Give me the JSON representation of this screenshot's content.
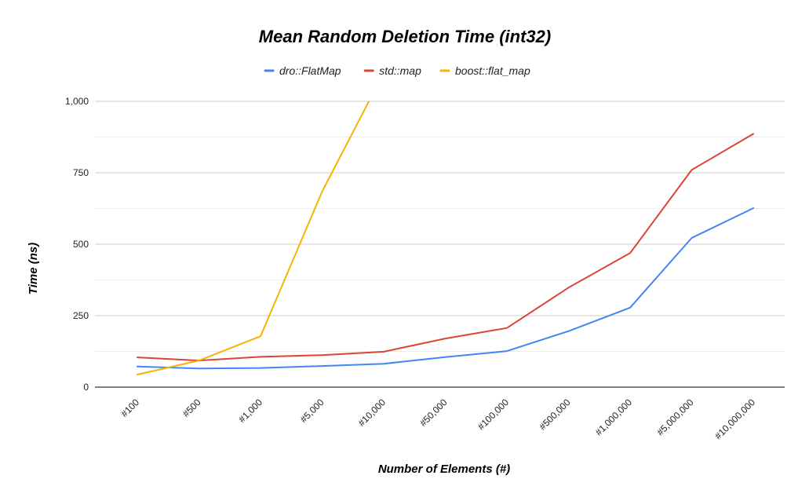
{
  "chart_data": {
    "type": "line",
    "title": "Mean Random Deletion Time (int32)",
    "xlabel": "Number of Elements (#)",
    "ylabel": "Time (ns)",
    "ylim": [
      0,
      1000
    ],
    "yticks": [
      0,
      250,
      500,
      750,
      1000
    ],
    "ytick_labels": [
      "0",
      "250",
      "500",
      "750",
      "1,000"
    ],
    "grid": true,
    "legend_position": "top",
    "categories": [
      "#100",
      "#500",
      "#1,000",
      "#5,000",
      "#10,000",
      "#50,000",
      "#100,000",
      "#500,000",
      "#1,000,000",
      "#5,000,000",
      "#10,000,000"
    ],
    "series": [
      {
        "name": "dro::FlatMap",
        "color": "#4285f4",
        "values": [
          72,
          65,
          67,
          74,
          82,
          105,
          126,
          196,
          278,
          522,
          626
        ]
      },
      {
        "name": "std::map",
        "color": "#db4437",
        "values": [
          104,
          93,
          106,
          112,
          124,
          170,
          207,
          348,
          469,
          760,
          886
        ]
      },
      {
        "name": "boost::flat_map",
        "color": "#f4b400",
        "values": [
          44,
          93,
          178,
          684,
          1100,
          null,
          null,
          null,
          null,
          null,
          null
        ]
      }
    ]
  }
}
